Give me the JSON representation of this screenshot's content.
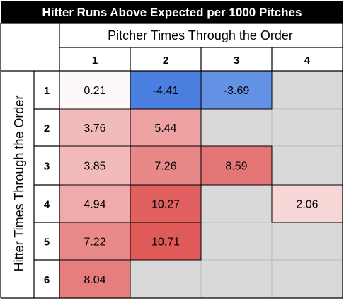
{
  "chart_data": {
    "type": "heatmap",
    "title": "Hitter Runs Above Expected per 1000 Pitches",
    "xlabel": "Pitcher Times Through the Order",
    "ylabel": "Hitter Times Through the Order",
    "x_categories": [
      "1",
      "2",
      "3",
      "4"
    ],
    "y_categories": [
      "1",
      "2",
      "3",
      "4",
      "5",
      "6"
    ],
    "values": [
      [
        "0.21",
        "-4.41",
        "-3.69",
        null
      ],
      [
        "3.76",
        "5.44",
        null,
        null
      ],
      [
        "3.85",
        "7.26",
        "8.59",
        null
      ],
      [
        "4.94",
        "10.27",
        null,
        "2.06"
      ],
      [
        "7.22",
        "10.71",
        null,
        null
      ],
      [
        "8.04",
        null,
        null,
        null
      ]
    ],
    "colors": {
      "title_bg": "#000000",
      "empty_cell": "#d9d9d9",
      "zero": "#ffffff",
      "negative_max": "#4a7fe0",
      "positive_max": "#e05a5a",
      "grid": "#000000"
    }
  }
}
